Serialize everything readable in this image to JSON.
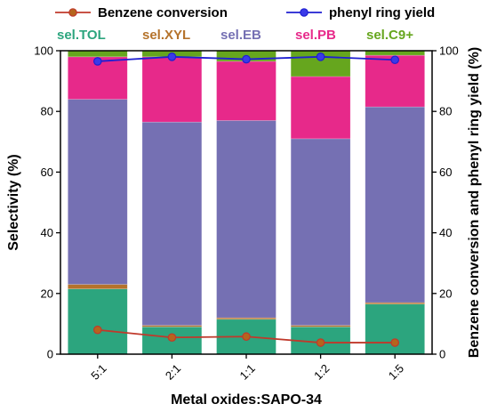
{
  "chart_data": {
    "type": "bar",
    "stacked": true,
    "categories": [
      "5:1",
      "2:1",
      "1:1",
      "1:2",
      "1:5"
    ],
    "xlabel": "Metal oxides:SAPO-34",
    "ylabel": "Selectivity (%)",
    "y2label": "Benzene conversion and phenyl ring yield (%)",
    "ylim": [
      0,
      100
    ],
    "y2lim": [
      0,
      100
    ],
    "yticks": [
      0,
      20,
      40,
      60,
      80,
      100
    ],
    "grid": false,
    "bar_series": [
      {
        "name": "sel.TOL",
        "color": "#2ca57e",
        "values": [
          21.5,
          9,
          11.5,
          9,
          16.5
        ]
      },
      {
        "name": "sel.XYL",
        "color": "#b5732c",
        "values": [
          1.5,
          0.5,
          0.5,
          0.5,
          0.5
        ]
      },
      {
        "name": "sel.EB",
        "color": "#7570b3",
        "values": [
          61,
          67,
          65,
          61.5,
          64.5
        ]
      },
      {
        "name": "sel.PB",
        "color": "#e7298a",
        "values": [
          14,
          21.5,
          19.5,
          20.5,
          17
        ]
      },
      {
        "name": "sel.C9+",
        "color": "#66a61e",
        "values": [
          2,
          2,
          3.5,
          8.5,
          1.5
        ]
      }
    ],
    "line_series": [
      {
        "name": "Benzene conversion",
        "color": "#c0392b",
        "marker_fill": "#b5651d",
        "values": [
          8,
          5.5,
          5.8,
          3.8,
          3.8
        ]
      },
      {
        "name": "phenyl ring yield",
        "color": "#1f1fd1",
        "marker_fill": "#3a3ae8",
        "values": [
          96.5,
          98,
          97.2,
          98,
          97
        ]
      }
    ],
    "legend_position": "top"
  }
}
